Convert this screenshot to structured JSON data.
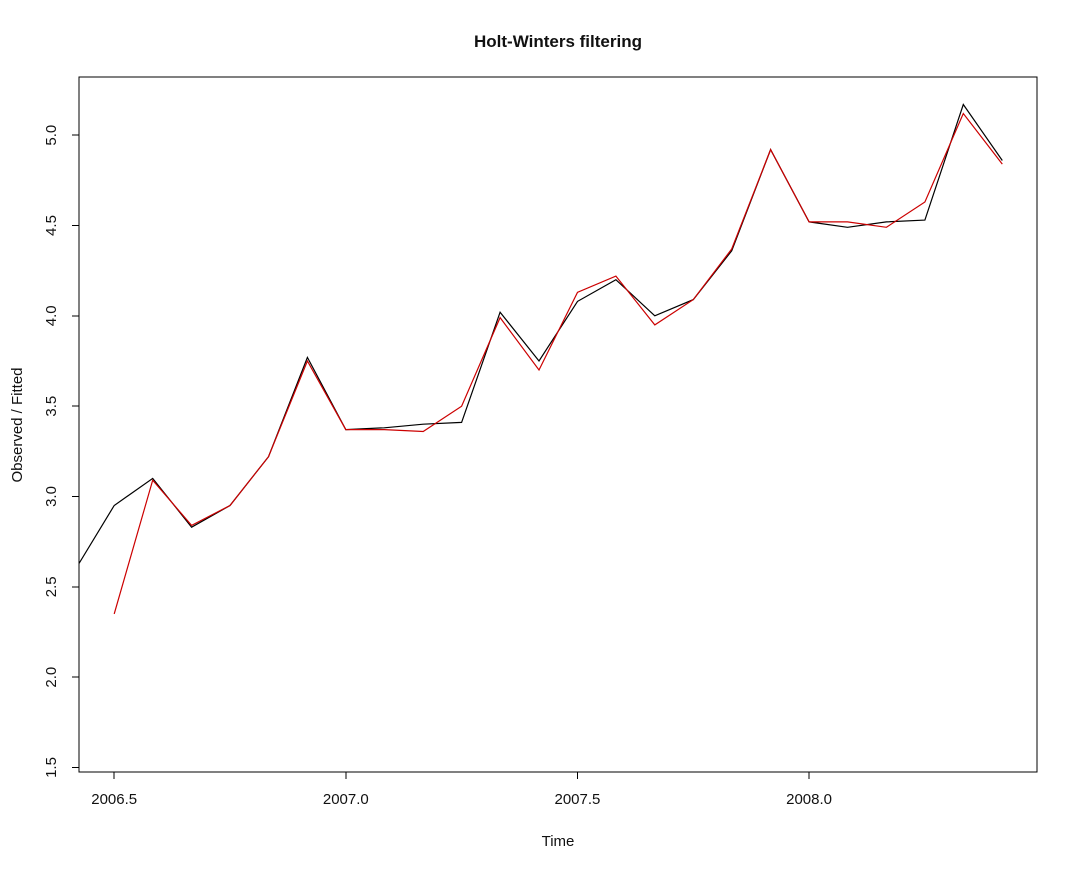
{
  "window": {
    "background": "#ffffff"
  },
  "chart_data": {
    "type": "line",
    "title": "Holt-Winters filtering",
    "xlabel": "Time",
    "ylabel": "Observed / Fitted",
    "grid": false,
    "legend": null,
    "box": true,
    "xlim": [
      2006.424,
      2008.492
    ],
    "ylim": [
      1.475,
      5.322
    ],
    "x_ticks": [
      2006.5,
      2007.0,
      2007.5,
      2008.0
    ],
    "x_tick_labels": [
      "2006.5",
      "2007.0",
      "2007.5",
      "2008.0"
    ],
    "y_ticks": [
      1.5,
      2.0,
      2.5,
      3.0,
      3.5,
      4.0,
      4.5,
      5.0
    ],
    "y_tick_labels": [
      "1.5",
      "2.0",
      "2.5",
      "3.0",
      "3.5",
      "4.0",
      "4.5",
      "5.0"
    ],
    "series": [
      {
        "name": "observed",
        "color": "#000000",
        "x": [
          2006.417,
          2006.5,
          2006.583,
          2006.667,
          2006.75,
          2006.833,
          2006.917,
          2007.0,
          2007.083,
          2007.167,
          2007.25,
          2007.333,
          2007.417,
          2007.5,
          2007.583,
          2007.667,
          2007.75,
          2007.833,
          2007.917,
          2008.0,
          2008.083,
          2008.167,
          2008.25,
          2008.333,
          2008.417
        ],
        "values": [
          2.6,
          2.95,
          3.1,
          2.83,
          2.95,
          3.22,
          3.77,
          3.37,
          3.38,
          3.4,
          3.41,
          4.02,
          3.75,
          4.08,
          4.2,
          4.0,
          4.09,
          4.36,
          4.92,
          4.52,
          4.49,
          4.52,
          4.53,
          5.17,
          4.86
        ]
      },
      {
        "name": "fitted",
        "color": "#cc0000",
        "x": [
          2006.5,
          2006.583,
          2006.667,
          2006.75,
          2006.833,
          2006.917,
          2007.0,
          2007.083,
          2007.167,
          2007.25,
          2007.333,
          2007.417,
          2007.5,
          2007.583,
          2007.667,
          2007.75,
          2007.833,
          2007.917,
          2008.0,
          2008.083,
          2008.167,
          2008.25,
          2008.333,
          2008.417
        ],
        "values": [
          2.35,
          3.09,
          2.84,
          2.95,
          3.22,
          3.75,
          3.37,
          3.37,
          3.36,
          3.5,
          3.99,
          3.7,
          4.13,
          4.22,
          3.95,
          4.09,
          4.37,
          4.92,
          4.52,
          4.52,
          4.49,
          4.63,
          5.12,
          4.84
        ]
      }
    ]
  }
}
